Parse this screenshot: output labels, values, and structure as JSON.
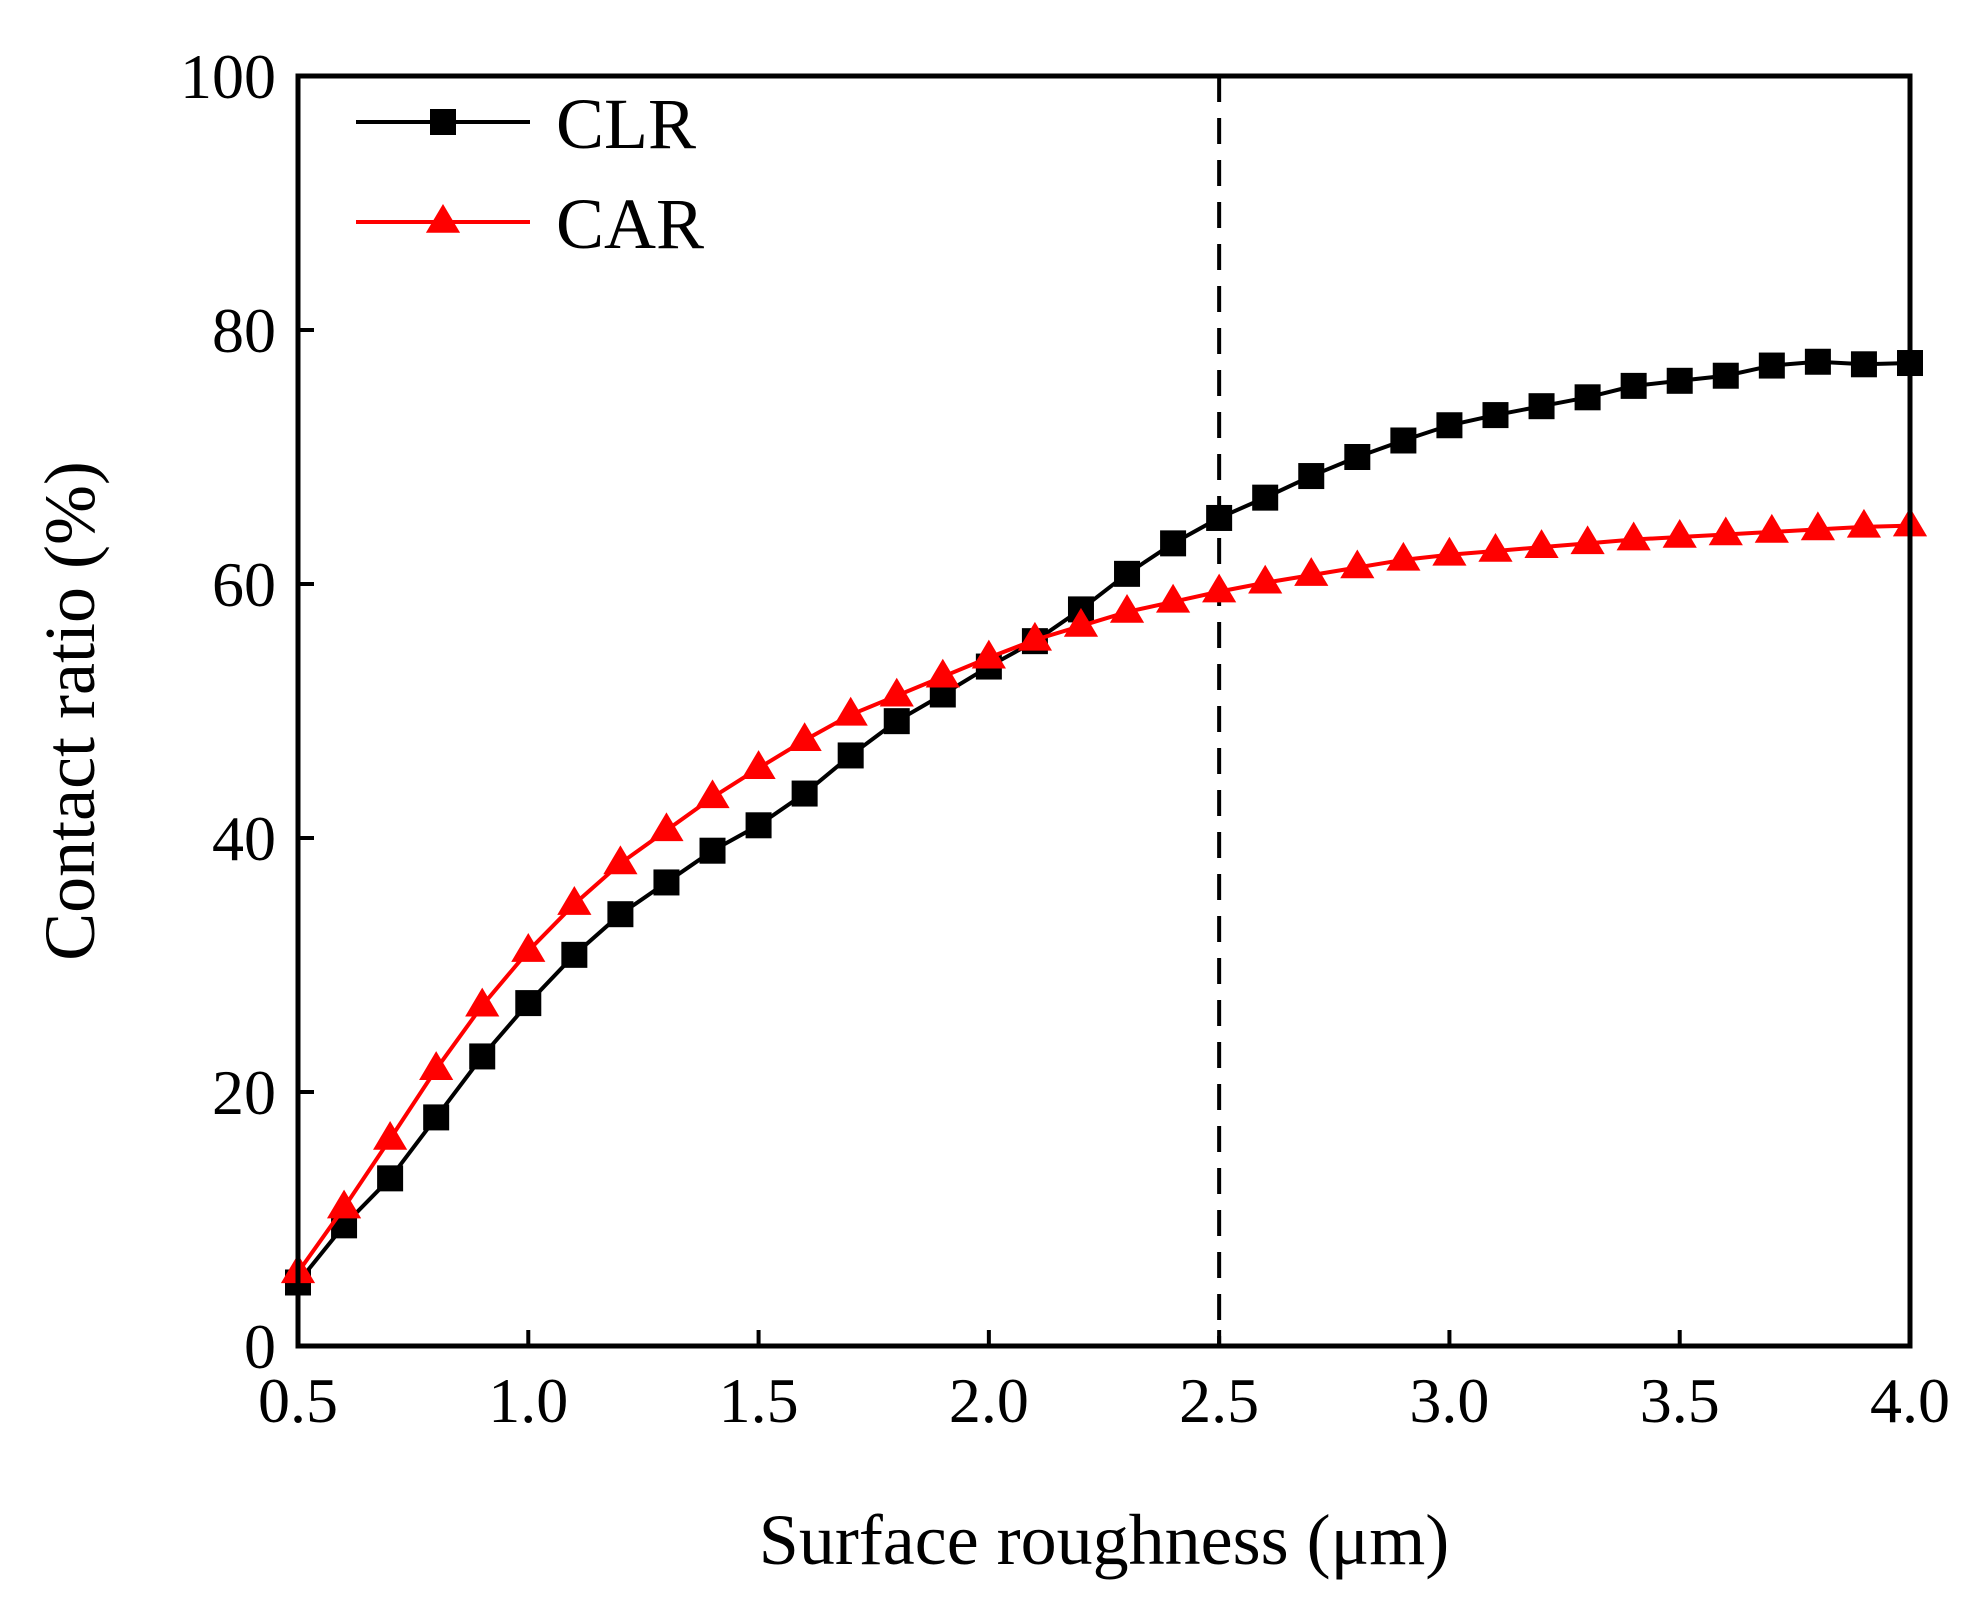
{
  "chart_data": {
    "type": "line",
    "title": "",
    "xlabel": "Surface roughness (μm)",
    "ylabel": "Contact ratio (%)",
    "xlim": [
      0.5,
      4.0
    ],
    "ylim": [
      0,
      100
    ],
    "xticks": [
      0.5,
      1.0,
      1.5,
      2.0,
      2.5,
      3.0,
      3.5,
      4.0
    ],
    "xtick_labels": [
      "0.5",
      "1.0",
      "1.5",
      "2.0",
      "2.5",
      "3.0",
      "3.5",
      "4.0"
    ],
    "yticks": [
      0,
      20,
      40,
      60,
      80,
      100
    ],
    "ytick_labels": [
      "0",
      "20",
      "40",
      "60",
      "80",
      "100"
    ],
    "grid": false,
    "legend_position": "top-left",
    "reference_line": {
      "axis": "x",
      "value": 2.5,
      "style": "dashed",
      "color": "#000000"
    },
    "series": [
      {
        "name": "CLR",
        "color": "#000000",
        "marker": "square",
        "x": [
          0.5,
          0.6,
          0.7,
          0.8,
          0.9,
          1.0,
          1.1,
          1.2,
          1.3,
          1.4,
          1.5,
          1.6,
          1.7,
          1.8,
          1.9,
          2.0,
          2.1,
          2.2,
          2.3,
          2.4,
          2.5,
          2.6,
          2.7,
          2.8,
          2.9,
          3.0,
          3.1,
          3.2,
          3.3,
          3.4,
          3.5,
          3.6,
          3.7,
          3.8,
          3.9,
          4.0
        ],
        "values": [
          5.0,
          9.5,
          13.2,
          18.0,
          22.8,
          27.0,
          30.8,
          34.0,
          36.5,
          39.0,
          41.0,
          43.5,
          46.5,
          49.2,
          51.3,
          53.5,
          55.5,
          58.0,
          60.8,
          63.2,
          65.2,
          66.8,
          68.5,
          70.0,
          71.3,
          72.5,
          73.3,
          74.0,
          74.7,
          75.6,
          76.0,
          76.4,
          77.2,
          77.5,
          77.3,
          77.4
        ]
      },
      {
        "name": "CAR",
        "color": "#ff0000",
        "marker": "triangle",
        "x": [
          0.5,
          0.6,
          0.7,
          0.8,
          0.9,
          1.0,
          1.1,
          1.2,
          1.3,
          1.4,
          1.5,
          1.6,
          1.7,
          1.8,
          1.9,
          2.0,
          2.1,
          2.2,
          2.3,
          2.4,
          2.5,
          2.6,
          2.7,
          2.8,
          2.9,
          3.0,
          3.1,
          3.2,
          3.3,
          3.4,
          3.5,
          3.6,
          3.7,
          3.8,
          3.9,
          4.0
        ],
        "values": [
          5.8,
          10.9,
          16.3,
          21.8,
          26.8,
          31.1,
          34.8,
          38.0,
          40.6,
          43.2,
          45.5,
          47.7,
          49.7,
          51.2,
          52.7,
          54.2,
          55.6,
          56.7,
          57.8,
          58.6,
          59.4,
          60.1,
          60.7,
          61.3,
          61.9,
          62.3,
          62.6,
          62.9,
          63.2,
          63.5,
          63.7,
          63.9,
          64.1,
          64.3,
          64.5,
          64.6
        ]
      }
    ]
  }
}
